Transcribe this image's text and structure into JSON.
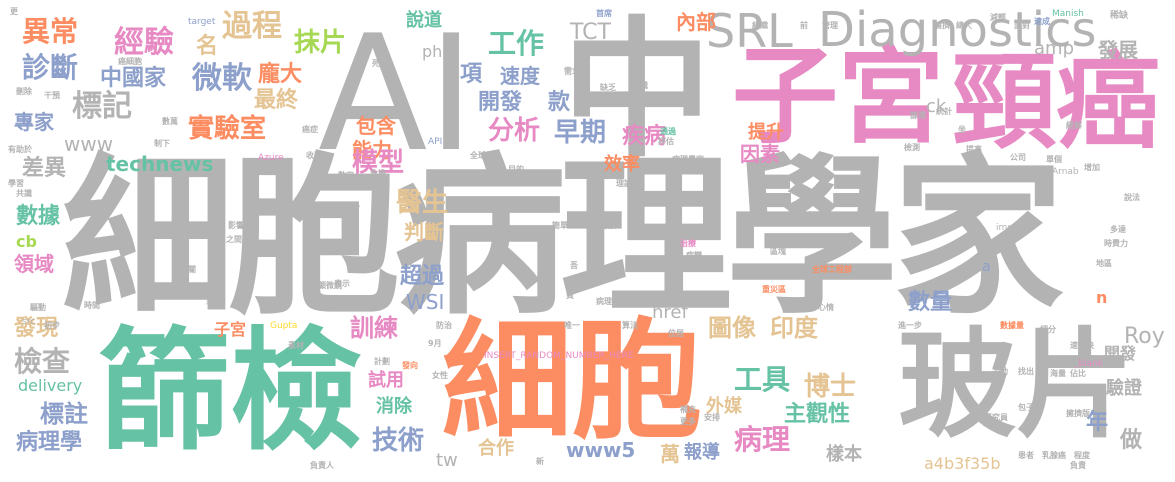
{
  "colors": {
    "gray": "#b3b3b3",
    "pink": "#e78ac3",
    "orange": "#fc8d62",
    "green": "#66c2a5",
    "blue": "#8da0cb",
    "lime": "#a6d854",
    "yellow": "#ffd92f",
    "tan": "#e5c494"
  },
  "words": {
    "main": "細胞病理學家",
    "ai": "AI",
    "zhong": "中",
    "zigong": "子宮",
    "jingai": "頸癌",
    "shaijian": "篩檢",
    "xibao": "細胞",
    "bopian": "玻片",
    "srl": "SRL",
    "diagnostics": "Diagnostics",
    "yichang": "異常",
    "zhenduan": "診斷",
    "jingyan": "經驗",
    "guocheng": "過程",
    "mopian": "抹片",
    "gongzuo": "工作",
    "shuodao": "說道",
    "neibu": "內部",
    "tct": "TCT",
    "weiruan": "微軟",
    "zhongguojia": "中國家",
    "biaoji": "標記",
    "pangda": "龐大",
    "zuizhong": "最終",
    "ming": "名",
    "sudu": "速度",
    "kaifa": "開發",
    "kuan": "款",
    "xiang": "項",
    "php": "php",
    "zhuanjia": "專家",
    "shiyanshi": "實驗室",
    "baohan": "包含",
    "fenxi": "分析",
    "zaoqi": "早期",
    "jibing": "疾病",
    "tisheng": "提升",
    "fazhan": "發展",
    "amp": "amp",
    "ck": "ck",
    "www": "www",
    "chayi": "差異",
    "technews": "technews",
    "nengli": "能力",
    "moxing": "模型",
    "xiaolu": "效率",
    "yinsu": "因素",
    "shuju": "數據",
    "yisheng": "醫生",
    "panduan": "判斷",
    "lingyu": "領域",
    "cb": "cb",
    "chaoguo": "超過",
    "wsi": "WSI",
    "shuliang": "數量",
    "href": "href",
    "tuxiang": "圖像",
    "yindu": "印度",
    "faxian": "發現",
    "zigong2": "子宮",
    "xunlian": "訓練",
    "roy": "Roy",
    "kaifa2": "開發",
    "jiancha": "檢查",
    "delivery": "delivery",
    "shiyong": "試用",
    "xiaochu": "消除",
    "gongju": "工具",
    "boshi": "博士",
    "waimei": "外媒",
    "zhuguanxing": "主觀性",
    "yanzheng": "驗證",
    "biaozhu": "標註",
    "bingli": "病理",
    "binglixue": "病理學",
    "jishu": "技術",
    "tw": "tw",
    "hezuo": "合作",
    "www5": "www5",
    "wan": "萬",
    "baodao": "報導",
    "yangben": "樣本",
    "nian": "年",
    "zuo": "做",
    "hash": "a4b3f35b",
    "n": "n",
    "a": "a",
    "insert": "INSERT_RANDOM_NUMBER_HERE",
    "blank": "_blank",
    "gupta": "Gupta",
    "azure": "Azure",
    "api": "API",
    "arnab": "Arnab",
    "manish": "Manish",
    "target": "target",
    "src": "src",
    "img": "img",
    "small1": "首席",
    "small2": "速成",
    "small3": "稀缺",
    "small4": "減輕",
    "small5": "需求",
    "small6": "缺乏",
    "small7": "知識",
    "small8": "統計",
    "small9": "通過",
    "small10": "評估",
    "small11": "病理學家",
    "small12": "理論",
    "small13": "網路",
    "small14": "全球工程部",
    "small15": "重災區",
    "small16": "心情",
    "small17": "進一步",
    "small18": "數據量",
    "small19": "海量",
    "small20": "研究員",
    "small21": "負責人",
    "small22": "乳腺癌",
    "small23": "負責",
    "small24": "表示",
    "small25": "防治",
    "small26": "唯一",
    "small27": "算法",
    "small28": "位居",
    "small29": "安排",
    "small30": "補充",
    "small31": "女性",
    "small32": "計劃",
    "small33": "素材",
    "small34": "初步",
    "small35": "驅動",
    "small36": "時間",
    "small37": "手段",
    "small38": "市場",
    "small39": "區塊",
    "small40": "病變",
    "small41": "治療",
    "small42": "醫療",
    "small43": "數字",
    "small44": "負擔",
    "small45": "全球",
    "small46": "目的",
    "small47": "收到",
    "small48": "學習",
    "small49": "共識",
    "small50": "有助於",
    "small51": "刪除",
    "small52": "干預",
    "small53": "癌細胞",
    "small54": "時費力",
    "small55": "地區",
    "small56": "多達",
    "small57": "說法",
    "small58": "增加",
    "small59": "公司",
    "small60": "單個",
    "small61": "坐",
    "small62": "提高",
    "small63": "篩選",
    "small64": "面對",
    "small65": "總大",
    "small66": "擁擠",
    "small67": "組織",
    "small68": "管理",
    "small69": "前",
    "small70": "更多",
    "small71": "費",
    "small72": "吾",
    "small73": "更",
    "small74": "僅次於",
    "small75": "影響",
    "small76": "之間",
    "small77": "簡單",
    "small78": "重複",
    "small79": "有素",
    "small80": "關",
    "small81": "顯微鏡",
    "small82": "9月",
    "small83": "發向",
    "small84": "速度快",
    "small85": "細分",
    "small86": "佔比",
    "small87": "手動",
    "small88": "找出",
    "small89": "病理",
    "small90": "包子",
    "small91": "患者",
    "small92": "程度",
    "small93": "新",
    "small94": "癌症",
    "small95": "數萬",
    "small96": "制下",
    "small97": "死",
    "small98": "擁擠版",
    "small99": "緩解",
    "small100": "檢測"
  }
}
